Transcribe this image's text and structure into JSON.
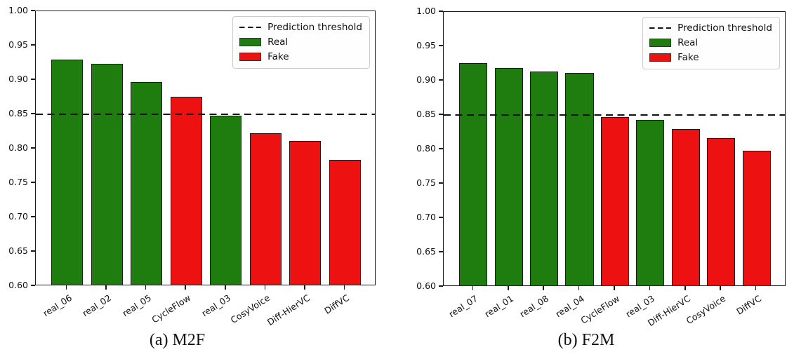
{
  "figure": {
    "background": "#ffffff",
    "colors": {
      "real": "#1f7d0f",
      "fake": "#ee1111",
      "threshold": "#111111"
    },
    "legend": {
      "threshold_label": "Prediction threshold",
      "real_label": "Real",
      "fake_label": "Fake"
    }
  },
  "chart_data": [
    {
      "type": "bar",
      "caption": "(a) M2F",
      "ylim": [
        0.6,
        1.0
      ],
      "ytick_labels": [
        "1.00",
        "0.95",
        "0.90",
        "0.85",
        "0.80",
        "0.75",
        "0.70",
        "0.65",
        "0.60"
      ],
      "threshold": 0.85,
      "grid": false,
      "legend_position": "top-right",
      "categories": [
        "real_06",
        "real_02",
        "real_05",
        "CycleFlow",
        "real_03",
        "CosyVoice",
        "Diff-HierVC",
        "DiffVC"
      ],
      "values": [
        0.928,
        0.921,
        0.895,
        0.874,
        0.846,
        0.82,
        0.809,
        0.782
      ],
      "series_class": [
        "real",
        "real",
        "real",
        "fake",
        "real",
        "fake",
        "fake",
        "fake"
      ]
    },
    {
      "type": "bar",
      "caption": "(b) F2M",
      "ylim": [
        0.6,
        1.0
      ],
      "ytick_labels": [
        "1.00",
        "0.95",
        "0.90",
        "0.85",
        "0.80",
        "0.75",
        "0.70",
        "0.65",
        "0.60"
      ],
      "threshold": 0.85,
      "grid": false,
      "legend_position": "top-right",
      "categories": [
        "real_07",
        "real_01",
        "real_08",
        "real_04",
        "CycleFlow",
        "real_03",
        "Diff-HierVC",
        "CosyVoice",
        "DiffVC"
      ],
      "values": [
        0.924,
        0.916,
        0.911,
        0.909,
        0.845,
        0.841,
        0.828,
        0.814,
        0.796
      ],
      "series_class": [
        "real",
        "real",
        "real",
        "real",
        "fake",
        "real",
        "fake",
        "fake",
        "fake"
      ]
    }
  ]
}
